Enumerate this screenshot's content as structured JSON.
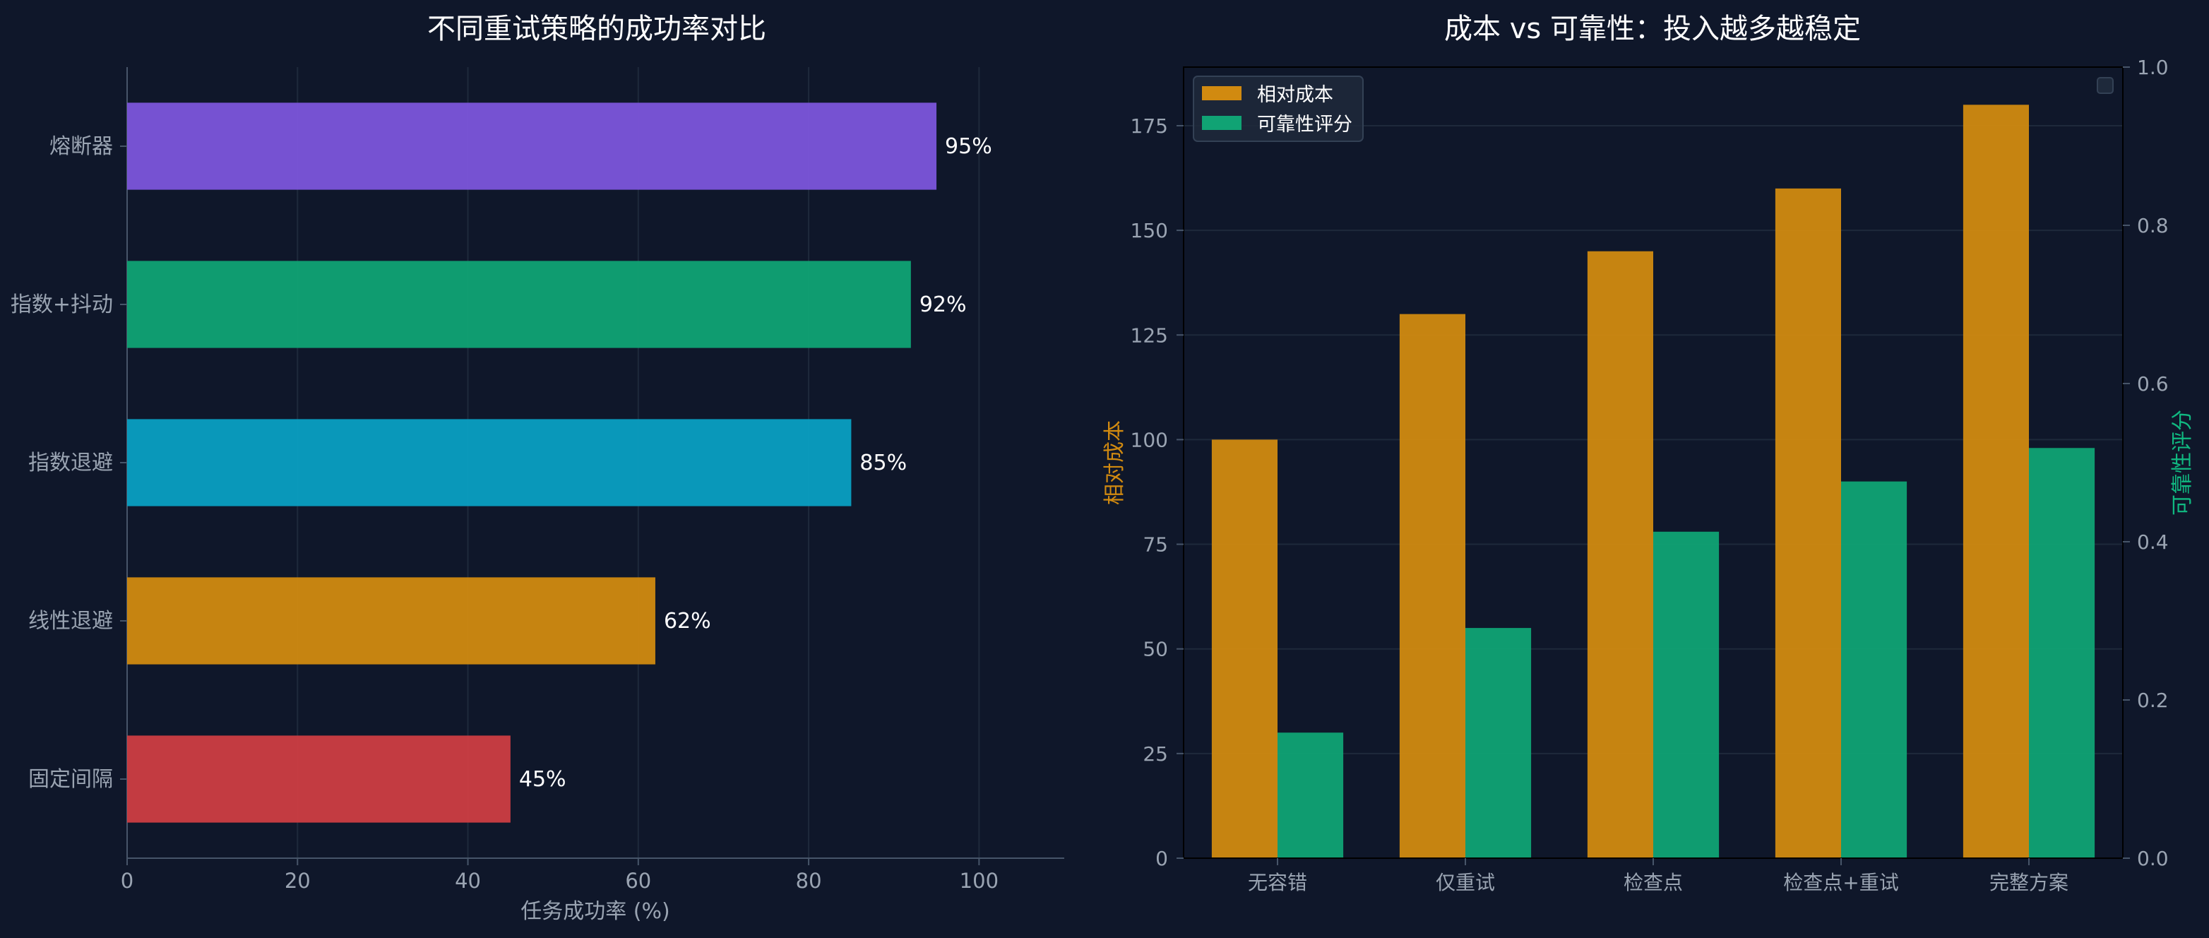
{
  "chart_data": [
    {
      "type": "bar",
      "orientation": "horizontal",
      "title": "不同重试策略的成功率对比",
      "categories": [
        "熔断器",
        "指数+抖动",
        "指数退避",
        "线性退避",
        "固定间隔"
      ],
      "values": [
        95,
        92,
        85,
        62,
        45
      ],
      "value_labels": [
        "95%",
        "92%",
        "85%",
        "62%",
        "45%"
      ],
      "colors": [
        "#7c55db",
        "#10a374",
        "#099fc2",
        "#d18a10",
        "#ce3d42"
      ],
      "xlabel": "任务成功率 (%)",
      "xlim": [
        0,
        110
      ],
      "xticks": [
        0,
        20,
        40,
        60,
        80,
        100
      ],
      "xtick_labels": [
        "0",
        "20",
        "40",
        "60",
        "80",
        "100"
      ],
      "grid": "vertical"
    },
    {
      "type": "bar",
      "title": "成本 vs 可靠性：投入越多越稳定",
      "categories": [
        "无容错",
        "仅重试",
        "检查点",
        "检查点+重试",
        "完整方案"
      ],
      "series": [
        {
          "name": "相对成本",
          "axis": "left",
          "color": "#d18a10",
          "values": [
            100,
            130,
            145,
            160,
            180
          ]
        },
        {
          "name": "可靠性评分",
          "axis": "left",
          "color": "#10a374",
          "values": [
            30,
            55,
            78,
            90,
            98
          ]
        }
      ],
      "ylabel": "相对成本",
      "ylabel_color": "#d18a10",
      "y2label": "可靠性评分",
      "y2label_color": "#10b981",
      "ylim": [
        0,
        189
      ],
      "yticks": [
        0,
        25,
        50,
        75,
        100,
        125,
        150,
        175
      ],
      "ytick_labels": [
        "0",
        "25",
        "50",
        "75",
        "100",
        "125",
        "150",
        "175"
      ],
      "y2lim": [
        0,
        1
      ],
      "y2ticks": [
        0,
        0.2,
        0.4,
        0.6,
        0.8,
        1.0
      ],
      "y2tick_labels": [
        "0.0",
        "0.2",
        "0.4",
        "0.6",
        "0.8",
        "1.0"
      ],
      "legend": "top-left",
      "grid": "horizontal"
    }
  ],
  "theme": {
    "background": "#0f172a",
    "text": "#9aa4b2",
    "title": "#ffffff",
    "grid": "#1e293b",
    "axis": "#475569"
  }
}
